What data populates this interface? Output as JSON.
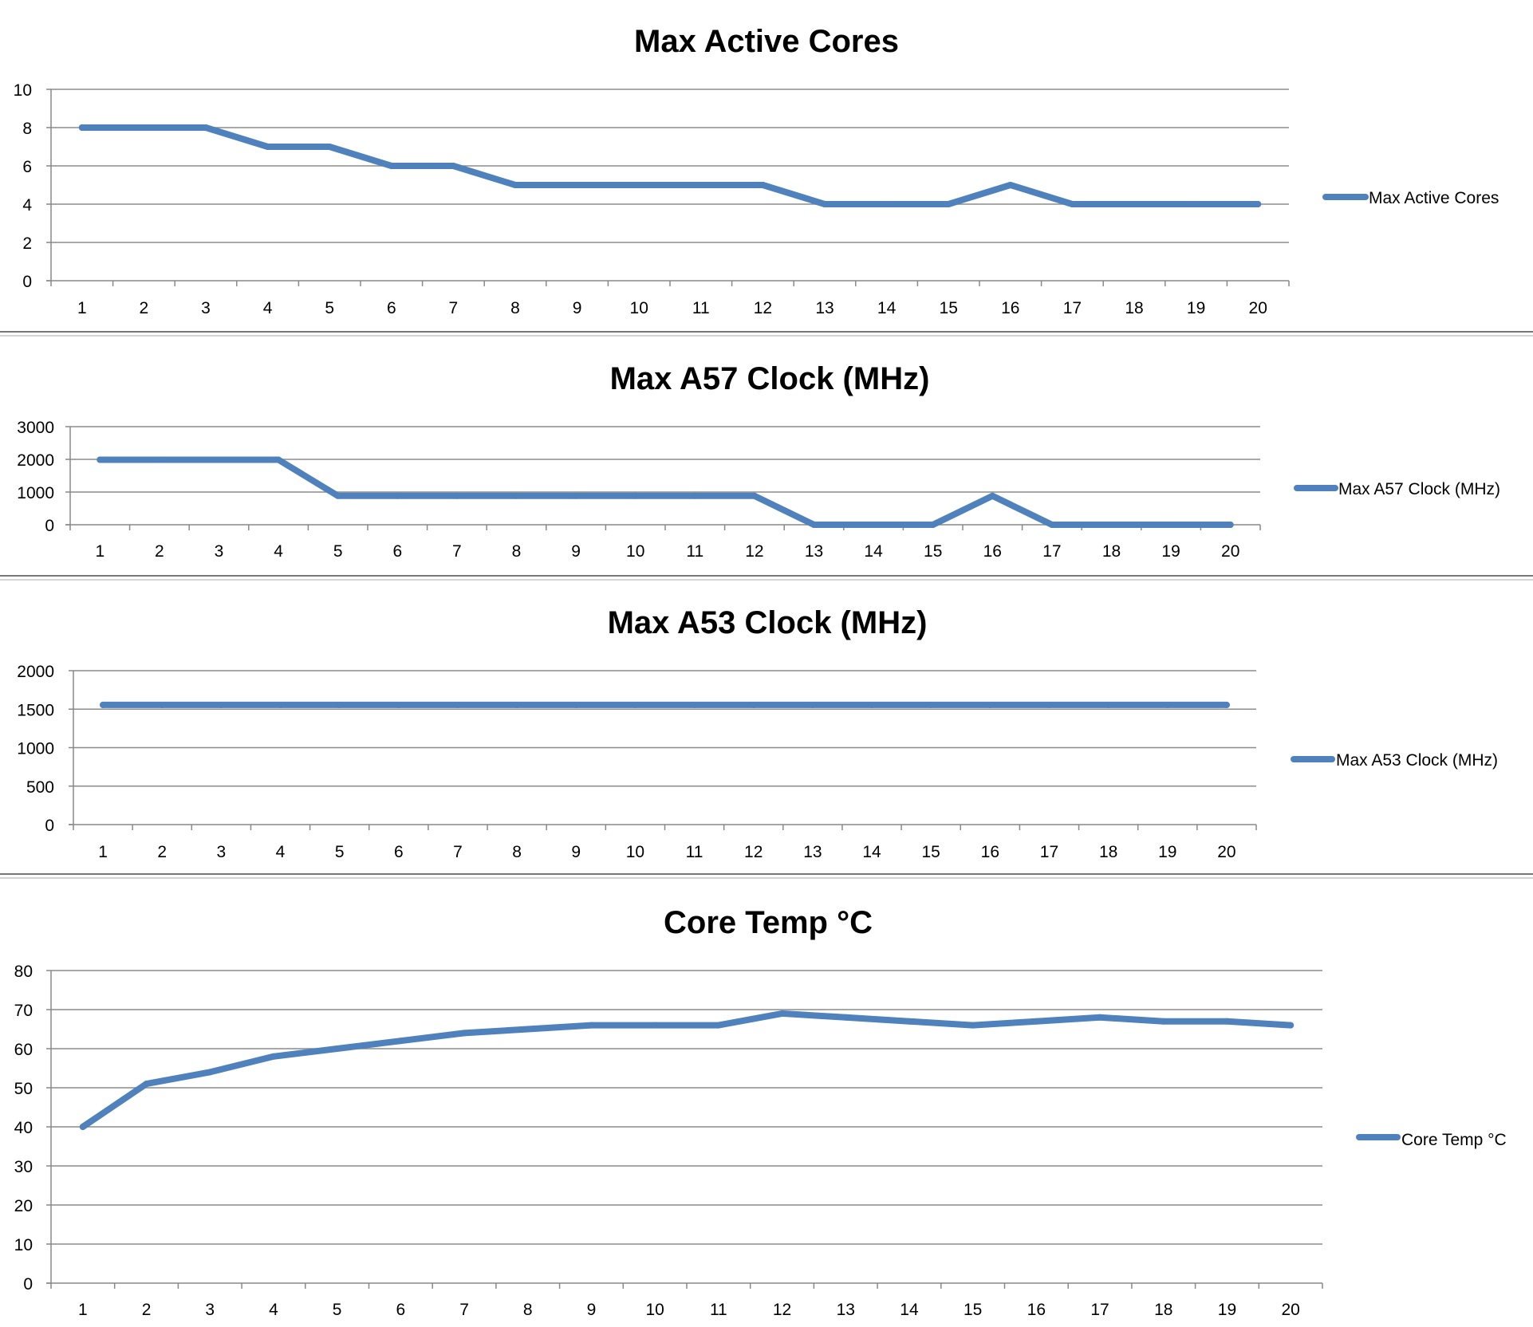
{
  "colors": {
    "series": "#4f81bd",
    "grid": "#8c8c8c",
    "axis": "#888888",
    "divider": "#777777"
  },
  "chart_data": [
    {
      "type": "line",
      "title": "Max Active Cores",
      "xlabel": "",
      "ylabel": "",
      "categories": [
        "1",
        "2",
        "3",
        "4",
        "5",
        "6",
        "7",
        "8",
        "9",
        "10",
        "11",
        "12",
        "13",
        "14",
        "15",
        "16",
        "17",
        "18",
        "19",
        "20"
      ],
      "yticks": [
        "0",
        "2",
        "4",
        "6",
        "8",
        "10"
      ],
      "ylim": [
        0,
        10
      ],
      "grid": true,
      "legend": "right",
      "series": [
        {
          "name": "Max Active Cores",
          "values": [
            8,
            8,
            8,
            7,
            7,
            6,
            6,
            5,
            5,
            5,
            5,
            5,
            4,
            4,
            4,
            5,
            4,
            4,
            4,
            4
          ]
        }
      ]
    },
    {
      "type": "line",
      "title": "Max A57 Clock (MHz)",
      "xlabel": "",
      "ylabel": "",
      "categories": [
        "1",
        "2",
        "3",
        "4",
        "5",
        "6",
        "7",
        "8",
        "9",
        "10",
        "11",
        "12",
        "13",
        "14",
        "15",
        "16",
        "17",
        "18",
        "19",
        "20"
      ],
      "yticks": [
        "0",
        "1000",
        "2000",
        "3000"
      ],
      "ylim": [
        0,
        3000
      ],
      "grid": true,
      "legend": "right",
      "series": [
        {
          "name": "Max A57 Clock (MHz)",
          "values": [
            1989,
            1989,
            1989,
            1989,
            884,
            884,
            884,
            884,
            884,
            884,
            884,
            884,
            0,
            0,
            0,
            884,
            0,
            0,
            0,
            0
          ]
        }
      ]
    },
    {
      "type": "line",
      "title": "Max A53 Clock (MHz)",
      "xlabel": "",
      "ylabel": "",
      "categories": [
        "1",
        "2",
        "3",
        "4",
        "5",
        "6",
        "7",
        "8",
        "9",
        "10",
        "11",
        "12",
        "13",
        "14",
        "15",
        "16",
        "17",
        "18",
        "19",
        "20"
      ],
      "yticks": [
        "0",
        "500",
        "1000",
        "1500",
        "2000"
      ],
      "ylim": [
        0,
        2000
      ],
      "grid": true,
      "legend": "right",
      "series": [
        {
          "name": "Max A53 Clock (MHz)",
          "values": [
            1555,
            1555,
            1555,
            1555,
            1555,
            1555,
            1555,
            1555,
            1555,
            1555,
            1555,
            1555,
            1555,
            1555,
            1555,
            1555,
            1555,
            1555,
            1555,
            1555
          ]
        }
      ]
    },
    {
      "type": "line",
      "title": "Core Temp °C",
      "xlabel": "",
      "ylabel": "",
      "categories": [
        "1",
        "2",
        "3",
        "4",
        "5",
        "6",
        "7",
        "8",
        "9",
        "10",
        "11",
        "12",
        "13",
        "14",
        "15",
        "16",
        "17",
        "18",
        "19",
        "20"
      ],
      "yticks": [
        "0",
        "10",
        "20",
        "30",
        "40",
        "50",
        "60",
        "70",
        "80"
      ],
      "ylim": [
        0,
        80
      ],
      "grid": true,
      "legend": "right",
      "series": [
        {
          "name": "Core Temp °C",
          "values": [
            40,
            51,
            54,
            58,
            60,
            62,
            64,
            65,
            66,
            66,
            66,
            69,
            68,
            67,
            66,
            67,
            68,
            67,
            67,
            66
          ]
        }
      ]
    }
  ]
}
